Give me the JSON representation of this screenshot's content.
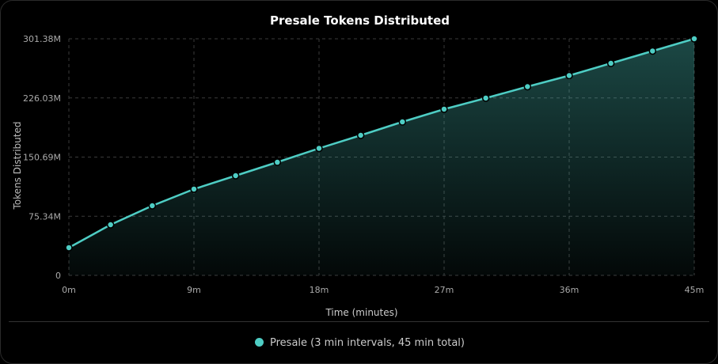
{
  "chart_data": {
    "type": "area",
    "title": "Presale Tokens Distributed",
    "xlabel": "Time (minutes)",
    "ylabel": "Tokens Distributed",
    "x": [
      0,
      3,
      6,
      9,
      12,
      15,
      18,
      21,
      24,
      27,
      30,
      33,
      36,
      39,
      42,
      45
    ],
    "series": [
      {
        "name": "Presale (3 min intervals, 45 min total)",
        "color": "#4ecdc4",
        "values": [
          35.3,
          64.5,
          88.7,
          109.9,
          127.0,
          144.1,
          161.8,
          178.4,
          195.5,
          211.7,
          225.8,
          240.4,
          254.5,
          270.1,
          285.8,
          301.38
        ]
      }
    ],
    "x_ticks": [
      "0m",
      "9m",
      "18m",
      "27m",
      "36m",
      "45m"
    ],
    "x_tick_values": [
      0,
      9,
      18,
      27,
      36,
      45
    ],
    "y_ticks": [
      "0",
      "75.34M",
      "150.69M",
      "226.03M",
      "301.38M"
    ],
    "y_tick_values": [
      0,
      75.34,
      150.69,
      226.03,
      301.38
    ],
    "xlim": [
      0,
      45
    ],
    "ylim": [
      0,
      301.38
    ],
    "unit": "M",
    "grid": true,
    "legend_position": "bottom"
  },
  "legend": {
    "label": "Presale (3 min intervals, 45 min total)",
    "color": "#4ecdc4"
  }
}
